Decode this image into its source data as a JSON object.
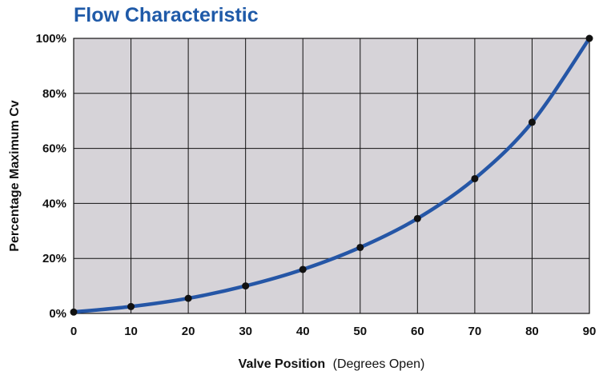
{
  "chart_data": {
    "type": "line",
    "title": "Flow Characteristic",
    "xlabel_bold": "Valve Position",
    "xlabel_light": "(Degrees Open)",
    "ylabel": "Percentage Maximum Cv",
    "x": [
      0,
      10,
      20,
      30,
      40,
      50,
      60,
      70,
      80,
      90
    ],
    "x_tick_labels": [
      "0",
      "10",
      "20",
      "30",
      "40",
      "50",
      "60",
      "70",
      "80",
      "90"
    ],
    "y_tick_values": [
      0,
      20,
      40,
      60,
      80,
      100
    ],
    "y_tick_labels": [
      "0%",
      "20%",
      "40%",
      "60%",
      "80%",
      "100%"
    ],
    "xlim": [
      0,
      90
    ],
    "ylim": [
      0,
      100
    ],
    "grid": true,
    "series": [
      {
        "values": [
          0.5,
          2.5,
          5.5,
          10,
          16,
          24,
          34.5,
          49,
          69.5,
          100
        ]
      }
    ],
    "colors": {
      "title": "#1f5aa8",
      "line": "#2556a6",
      "marker": "#111111",
      "plot_background": "#d6d3d8",
      "grid": "#111111"
    }
  }
}
